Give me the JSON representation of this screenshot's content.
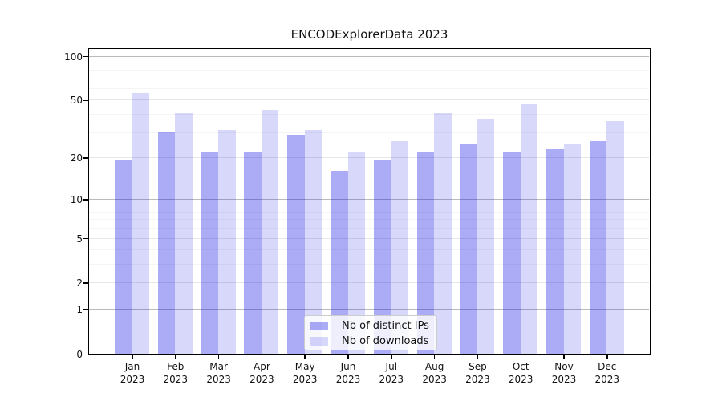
{
  "figure": {
    "title": "ENCODExplorerData 2023"
  },
  "chart_data": {
    "type": "bar",
    "title": "ENCODExplorerData 2023",
    "categories": [
      "Jan",
      "Feb",
      "Mar",
      "Apr",
      "May",
      "Jun",
      "Jul",
      "Aug",
      "Sep",
      "Oct",
      "Nov",
      "Dec"
    ],
    "x_tick_year": "2023",
    "series": [
      {
        "name": "Nb of distinct IPs",
        "color": "rgba(15,15,230,0.35)",
        "values": [
          19,
          30,
          22,
          22,
          29,
          16,
          19,
          22,
          25,
          22,
          23,
          26
        ]
      },
      {
        "name": "Nb of downloads",
        "color": "rgba(15,15,230,0.16)",
        "values": [
          56,
          41,
          31,
          43,
          31,
          22,
          26,
          41,
          37,
          47,
          25,
          36
        ]
      }
    ],
    "xlabel": "",
    "ylabel": "",
    "yscale": "log1p",
    "ylim": [
      0,
      112
    ],
    "y_ticks_labeled": [
      100,
      50,
      20,
      10,
      5,
      2,
      1,
      0
    ],
    "y_ticks_major": [
      1,
      10,
      100
    ],
    "y_ticks_minor_labeled": [
      2,
      5,
      20,
      50
    ],
    "y_ticks_minor": [
      3,
      4,
      6,
      7,
      8,
      9,
      30,
      40,
      60,
      70,
      80,
      90
    ],
    "grid": true,
    "legend_position": "lower-center",
    "colors": {
      "grid_major": "#bbbbbb",
      "grid_minor_labeled": "#e6e6e6",
      "grid_minor": "#f4f4f4",
      "spine": "#000000",
      "background": "#ffffff"
    }
  }
}
